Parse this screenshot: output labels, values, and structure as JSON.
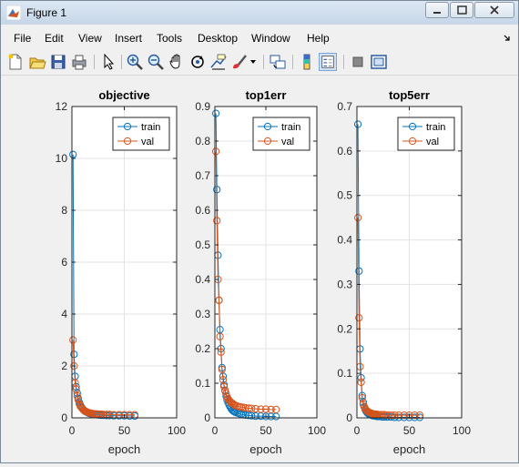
{
  "window": {
    "title": "Figure 1",
    "minimize_icon": "minimize-icon",
    "maximize_icon": "maximize-icon",
    "close_icon": "close-icon"
  },
  "menu": [
    "File",
    "Edit",
    "View",
    "Insert",
    "Tools",
    "Desktop",
    "Window",
    "Help"
  ],
  "toolbar": {
    "icons": [
      "new-figure-icon",
      "open-file-icon",
      "save-icon",
      "print-icon",
      "pointer-icon",
      "zoom-in-icon",
      "zoom-out-icon",
      "pan-icon",
      "rotate-icon",
      "data-cursor-icon",
      "brush-icon",
      "link-plot-icon",
      "colorbar-icon",
      "legend-icon",
      "hide-plot-tools-icon",
      "show-plot-tools-icon"
    ]
  },
  "colors": {
    "train": "#0072BD",
    "val": "#D95319"
  },
  "chart_data": [
    {
      "type": "line",
      "title": "objective",
      "xlabel": "epoch",
      "ylabel": "",
      "xlim": [
        0,
        100
      ],
      "ylim": [
        0,
        12
      ],
      "xticks": [
        "0",
        "50",
        "100"
      ],
      "yticks": [
        "0",
        "2",
        "4",
        "6",
        "8",
        "10",
        "12"
      ],
      "legend": "top-right",
      "grid": true,
      "markers": "circle",
      "series": [
        {
          "name": "train",
          "x": [
            1,
            2,
            3,
            4,
            5,
            6,
            7,
            8,
            9,
            10,
            11,
            12,
            13,
            14,
            15,
            16,
            17,
            18,
            19,
            20,
            22,
            24,
            26,
            28,
            30,
            33,
            36,
            40,
            45,
            50,
            55,
            60
          ],
          "values": [
            10.15,
            2.45,
            1.6,
            1.2,
            0.95,
            0.75,
            0.6,
            0.5,
            0.42,
            0.36,
            0.31,
            0.27,
            0.24,
            0.22,
            0.2,
            0.18,
            0.17,
            0.16,
            0.15,
            0.14,
            0.13,
            0.12,
            0.11,
            0.1,
            0.1,
            0.09,
            0.09,
            0.08,
            0.08,
            0.08,
            0.07,
            0.07
          ]
        },
        {
          "name": "val",
          "x": [
            1,
            2,
            3,
            4,
            5,
            6,
            7,
            8,
            9,
            10,
            11,
            12,
            13,
            14,
            15,
            16,
            17,
            18,
            19,
            20,
            22,
            24,
            26,
            28,
            30,
            33,
            36,
            40,
            45,
            50,
            55,
            60
          ],
          "values": [
            3.0,
            2.0,
            1.35,
            1.1,
            0.85,
            0.7,
            0.55,
            0.45,
            0.4,
            0.35,
            0.3,
            0.27,
            0.25,
            0.23,
            0.21,
            0.2,
            0.19,
            0.18,
            0.17,
            0.16,
            0.15,
            0.15,
            0.14,
            0.14,
            0.13,
            0.13,
            0.13,
            0.12,
            0.12,
            0.12,
            0.12,
            0.12
          ]
        }
      ]
    },
    {
      "type": "line",
      "title": "top1err",
      "xlabel": "epoch",
      "ylabel": "",
      "xlim": [
        0,
        100
      ],
      "ylim": [
        0,
        0.9
      ],
      "xticks": [
        "0",
        "50",
        "100"
      ],
      "yticks": [
        "0",
        "0.1",
        "0.2",
        "0.3",
        "0.4",
        "0.5",
        "0.6",
        "0.7",
        "0.8",
        "0.9"
      ],
      "legend": "top-right",
      "grid": true,
      "markers": "circle",
      "series": [
        {
          "name": "train",
          "x": [
            1,
            2,
            3,
            4,
            5,
            6,
            7,
            8,
            9,
            10,
            11,
            12,
            13,
            14,
            15,
            16,
            17,
            18,
            19,
            20,
            22,
            24,
            26,
            28,
            30,
            33,
            36,
            40,
            45,
            50,
            55,
            60
          ],
          "values": [
            0.88,
            0.66,
            0.47,
            0.34,
            0.255,
            0.2,
            0.145,
            0.12,
            0.095,
            0.078,
            0.063,
            0.052,
            0.044,
            0.037,
            0.032,
            0.027,
            0.023,
            0.02,
            0.018,
            0.016,
            0.014,
            0.012,
            0.01,
            0.009,
            0.008,
            0.007,
            0.006,
            0.005,
            0.005,
            0.004,
            0.004,
            0.004
          ]
        },
        {
          "name": "val",
          "x": [
            1,
            2,
            3,
            4,
            5,
            6,
            7,
            8,
            9,
            10,
            11,
            12,
            13,
            14,
            15,
            16,
            17,
            18,
            19,
            20,
            22,
            24,
            26,
            28,
            30,
            33,
            36,
            40,
            45,
            50,
            55,
            60
          ],
          "values": [
            0.77,
            0.57,
            0.4,
            0.34,
            0.235,
            0.19,
            0.14,
            0.11,
            0.09,
            0.08,
            0.07,
            0.06,
            0.055,
            0.05,
            0.047,
            0.044,
            0.042,
            0.04,
            0.038,
            0.036,
            0.034,
            0.032,
            0.031,
            0.03,
            0.029,
            0.028,
            0.027,
            0.026,
            0.025,
            0.025,
            0.024,
            0.024
          ]
        }
      ]
    },
    {
      "type": "line",
      "title": "top5err",
      "xlabel": "epoch",
      "ylabel": "",
      "xlim": [
        0,
        100
      ],
      "ylim": [
        0,
        0.7
      ],
      "xticks": [
        "0",
        "50",
        "100"
      ],
      "yticks": [
        "0",
        "0.1",
        "0.2",
        "0.3",
        "0.4",
        "0.5",
        "0.6",
        "0.7"
      ],
      "legend": "top-right",
      "grid": true,
      "markers": "circle",
      "series": [
        {
          "name": "train",
          "x": [
            1,
            2,
            3,
            4,
            5,
            6,
            7,
            8,
            9,
            10,
            11,
            12,
            13,
            14,
            15,
            16,
            17,
            18,
            19,
            20,
            22,
            24,
            26,
            28,
            30,
            33,
            36,
            40,
            45,
            50,
            55,
            60
          ],
          "values": [
            0.66,
            0.33,
            0.155,
            0.09,
            0.05,
            0.035,
            0.025,
            0.018,
            0.014,
            0.011,
            0.009,
            0.008,
            0.007,
            0.006,
            0.005,
            0.005,
            0.004,
            0.004,
            0.003,
            0.003,
            0.003,
            0.002,
            0.002,
            0.002,
            0.002,
            0.002,
            0.001,
            0.001,
            0.001,
            0.001,
            0.001,
            0.001
          ]
        },
        {
          "name": "val",
          "x": [
            1,
            2,
            3,
            4,
            5,
            6,
            7,
            8,
            9,
            10,
            11,
            12,
            13,
            14,
            15,
            16,
            17,
            18,
            19,
            20,
            22,
            24,
            26,
            28,
            30,
            33,
            36,
            40,
            45,
            50,
            55,
            60
          ],
          "values": [
            0.45,
            0.225,
            0.115,
            0.08,
            0.045,
            0.03,
            0.024,
            0.02,
            0.017,
            0.015,
            0.013,
            0.012,
            0.011,
            0.01,
            0.009,
            0.009,
            0.008,
            0.008,
            0.008,
            0.007,
            0.007,
            0.007,
            0.007,
            0.006,
            0.006,
            0.006,
            0.006,
            0.006,
            0.006,
            0.006,
            0.006,
            0.006
          ]
        }
      ]
    }
  ]
}
